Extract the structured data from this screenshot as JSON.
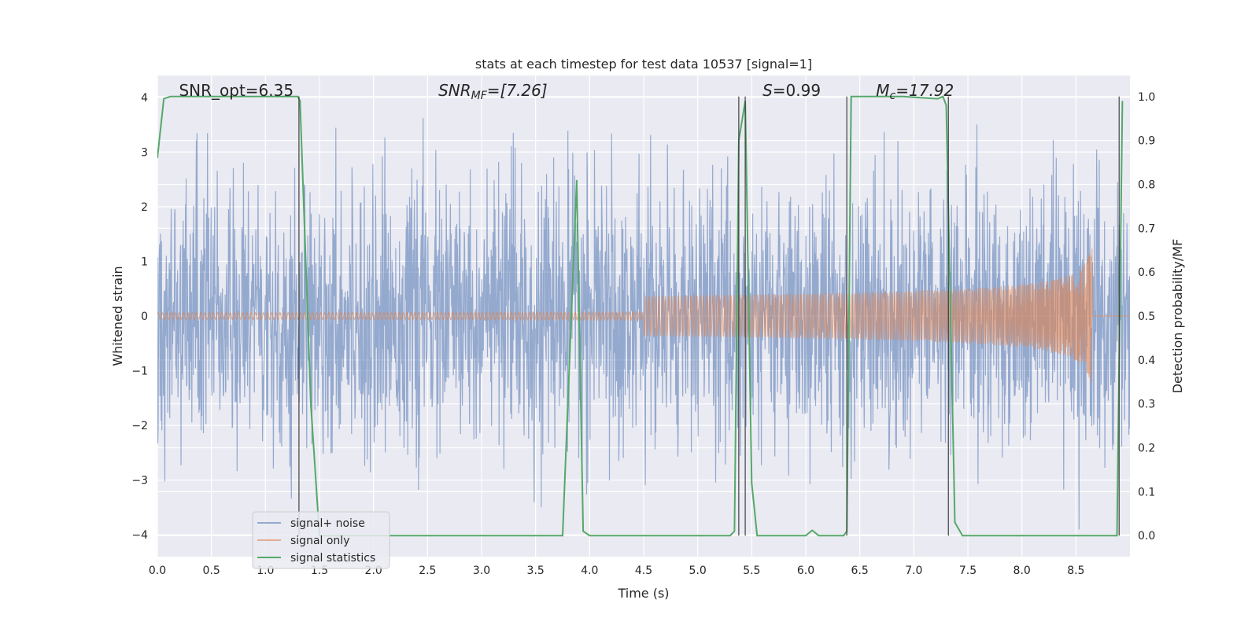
{
  "chart_data": {
    "type": "line",
    "title": "stats at each timestep for test data 10537 [signal=1]",
    "xlabel": "Time (s)",
    "ylabel": "Whitened strain",
    "y2label": "Detection probability/MF",
    "xlim": [
      0,
      9.0
    ],
    "ylim": [
      -4.4,
      4.4
    ],
    "y2lim": [
      -0.048,
      1.048
    ],
    "xticks": [
      "0.0",
      "0.5",
      "1.0",
      "1.5",
      "2.0",
      "2.5",
      "3.0",
      "3.5",
      "4.0",
      "4.5",
      "5.0",
      "5.5",
      "6.0",
      "6.5",
      "7.0",
      "7.5",
      "8.0",
      "8.5"
    ],
    "yticks": [
      "−4",
      "−3",
      "−2",
      "−1",
      "0",
      "1",
      "2",
      "3",
      "4"
    ],
    "y2ticks": [
      "0.0",
      "0.1",
      "0.2",
      "0.3",
      "0.4",
      "0.5",
      "0.6",
      "0.7",
      "0.8",
      "0.9",
      "1.0"
    ],
    "grid": true,
    "legend_position": "lower-left",
    "annotations": [
      {
        "text": "SNR_opt=6.35",
        "x": 0.2
      },
      {
        "text": "SNR",
        "sub": "MF",
        "suffix": "=[7.26]",
        "italic": true,
        "x": 2.6
      },
      {
        "text": "S",
        "suffix": "=0.99",
        "italic": true,
        "x": 5.6
      },
      {
        "text": "M",
        "sub": "c",
        "suffix": "=17.92",
        "italic": true,
        "x": 6.65
      }
    ],
    "vlines": [
      1.31,
      5.38,
      5.44,
      6.38,
      7.32,
      8.9
    ],
    "series": [
      {
        "name": "signal+ noise",
        "color": "#4c72b0",
        "opacity": 0.55,
        "axis": "left",
        "description": "whitened noisy strain, roughly uniform band between -2 and 2.5 with spikes to about +/-3.8",
        "amplitude": 1.2
      },
      {
        "name": "signal only",
        "color": "#dd8452",
        "opacity": 0.6,
        "axis": "left",
        "description": "chirp signal growing in amplitude, peaking near t=8.65",
        "peak_time": 8.65,
        "peak_amplitude": 1.4
      },
      {
        "name": "signal statistics",
        "color": "#55a868",
        "axis": "right",
        "points": [
          [
            0.0,
            0.86
          ],
          [
            0.06,
            0.995
          ],
          [
            0.12,
            1.0
          ],
          [
            1.3,
            1.0
          ],
          [
            1.32,
            0.99
          ],
          [
            1.42,
            0.3
          ],
          [
            1.5,
            0.0
          ],
          [
            3.75,
            0.0
          ],
          [
            3.88,
            0.81
          ],
          [
            3.94,
            0.01
          ],
          [
            4.0,
            0.0
          ],
          [
            4.6,
            0.0
          ],
          [
            5.3,
            0.0
          ],
          [
            5.34,
            0.01
          ],
          [
            5.38,
            0.9
          ],
          [
            5.44,
            0.99
          ],
          [
            5.5,
            0.12
          ],
          [
            5.55,
            0.0
          ],
          [
            6.0,
            0.0
          ],
          [
            6.06,
            0.012
          ],
          [
            6.12,
            0.0
          ],
          [
            6.35,
            0.0
          ],
          [
            6.38,
            0.01
          ],
          [
            6.42,
            1.0
          ],
          [
            6.9,
            1.0
          ],
          [
            7.22,
            0.995
          ],
          [
            7.27,
            1.0
          ],
          [
            7.3,
            0.98
          ],
          [
            7.38,
            0.03
          ],
          [
            7.45,
            0.0
          ],
          [
            8.88,
            0.0
          ],
          [
            8.93,
            0.99
          ]
        ]
      }
    ]
  }
}
